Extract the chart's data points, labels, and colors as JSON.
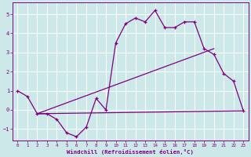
{
  "xlabel": "Windchill (Refroidissement éolien,°C)",
  "x_data": [
    0,
    1,
    2,
    3,
    4,
    5,
    6,
    7,
    8,
    9,
    10,
    11,
    12,
    13,
    14,
    15,
    16,
    17,
    18,
    19,
    20,
    21,
    22,
    23
  ],
  "y_data": [
    1.0,
    0.7,
    -0.2,
    -0.2,
    -0.5,
    -1.2,
    -1.4,
    -0.9,
    0.6,
    0.0,
    3.5,
    4.5,
    4.8,
    4.6,
    5.2,
    4.3,
    4.3,
    4.6,
    4.6,
    3.2,
    2.9,
    1.9,
    1.5,
    -0.05
  ],
  "line_color": "#800080",
  "bg_color": "#cce8e8",
  "grid_color": "#aadddd",
  "tick_color": "#800080",
  "label_color": "#800080",
  "xlim": [
    -0.5,
    23.5
  ],
  "ylim": [
    -1.6,
    5.6
  ],
  "yticks": [
    -1,
    0,
    1,
    2,
    3,
    4,
    5
  ],
  "xticks": [
    0,
    1,
    2,
    3,
    4,
    5,
    6,
    7,
    8,
    9,
    10,
    11,
    12,
    13,
    14,
    15,
    16,
    17,
    18,
    19,
    20,
    21,
    22,
    23
  ],
  "line1_x": [
    2,
    20
  ],
  "line1_y": [
    -0.2,
    3.2
  ],
  "line2_x": [
    2,
    23
  ],
  "line2_y": [
    -0.2,
    -0.05
  ]
}
